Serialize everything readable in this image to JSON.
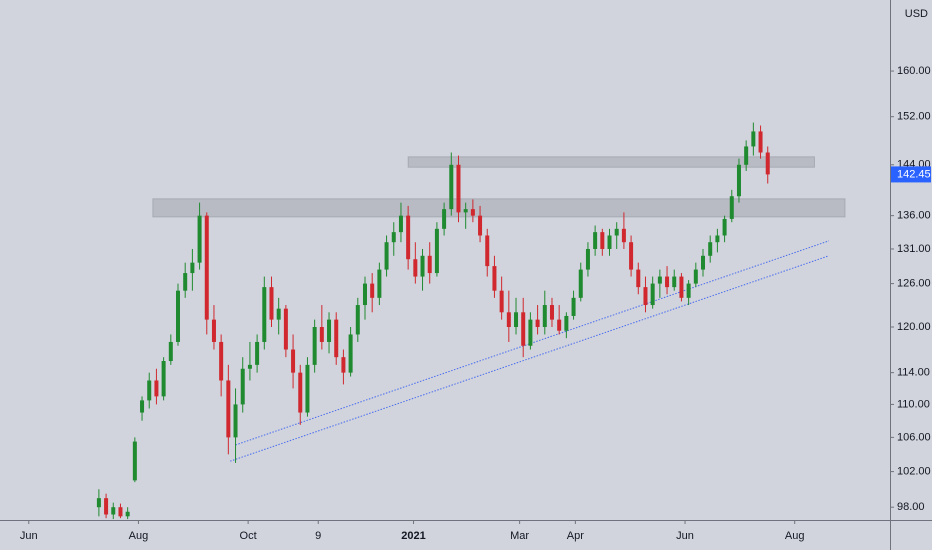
{
  "chart_data": {
    "type": "candlestick",
    "y_axis_label": "USD",
    "log_scale": true,
    "up_color": "#1f8a2f",
    "down_color": "#d0282e",
    "ylim": [
      96.6,
      173.3
    ],
    "yticks": [
      {
        "value": 98,
        "label": "98.00"
      },
      {
        "value": 102,
        "label": "102.00"
      },
      {
        "value": 106,
        "label": "106.00"
      },
      {
        "value": 110,
        "label": "110.00"
      },
      {
        "value": 114,
        "label": "114.00"
      },
      {
        "value": 120,
        "label": "120.00"
      },
      {
        "value": 126,
        "label": "126.00"
      },
      {
        "value": 131,
        "label": "131.00"
      },
      {
        "value": 136,
        "label": "136.00"
      },
      {
        "value": 144,
        "label": "144.00"
      },
      {
        "value": 152,
        "label": "152.00"
      },
      {
        "value": 160,
        "label": "160.00"
      }
    ],
    "xlim": [
      "2020-05-16",
      "2021-09-23"
    ],
    "xticks": [
      {
        "value": "2020-06-01",
        "label": "Jun"
      },
      {
        "value": "2020-08-01",
        "label": "Aug"
      },
      {
        "value": "2020-10-01",
        "label": "Oct"
      },
      {
        "value": "2020-11-09",
        "label": "9"
      },
      {
        "value": "2021-01-01",
        "label": "2021"
      },
      {
        "value": "2021-03-01",
        "label": "Mar"
      },
      {
        "value": "2021-04-01",
        "label": "Apr"
      },
      {
        "value": "2021-06-01",
        "label": "Jun"
      },
      {
        "value": "2021-08-01",
        "label": "Aug"
      }
    ],
    "last_price": 142.45,
    "x": [
      "2020-07-10",
      "2020-07-14",
      "2020-07-18",
      "2020-07-22",
      "2020-07-26",
      "2020-07-30",
      "2020-08-03",
      "2020-08-07",
      "2020-08-11",
      "2020-08-15",
      "2020-08-19",
      "2020-08-23",
      "2020-08-27",
      "2020-08-31",
      "2020-09-04",
      "2020-09-08",
      "2020-09-12",
      "2020-09-16",
      "2020-09-20",
      "2020-09-24",
      "2020-09-28",
      "2020-10-02",
      "2020-10-06",
      "2020-10-10",
      "2020-10-14",
      "2020-10-18",
      "2020-10-22",
      "2020-10-26",
      "2020-10-30",
      "2020-11-03",
      "2020-11-07",
      "2020-11-11",
      "2020-11-15",
      "2020-11-19",
      "2020-11-23",
      "2020-11-27",
      "2020-12-01",
      "2020-12-05",
      "2020-12-09",
      "2020-12-13",
      "2020-12-17",
      "2020-12-21",
      "2020-12-25",
      "2020-12-29",
      "2021-01-02",
      "2021-01-06",
      "2021-01-10",
      "2021-01-14",
      "2021-01-18",
      "2021-01-22",
      "2021-01-26",
      "2021-01-30",
      "2021-02-03",
      "2021-02-07",
      "2021-02-11",
      "2021-02-15",
      "2021-02-19",
      "2021-02-23",
      "2021-02-27",
      "2021-03-03",
      "2021-03-07",
      "2021-03-11",
      "2021-03-15",
      "2021-03-19",
      "2021-03-23",
      "2021-03-27",
      "2021-03-31",
      "2021-04-04",
      "2021-04-08",
      "2021-04-12",
      "2021-04-16",
      "2021-04-20",
      "2021-04-24",
      "2021-04-28",
      "2021-05-02",
      "2021-05-06",
      "2021-05-10",
      "2021-05-14",
      "2021-05-18",
      "2021-05-22",
      "2021-05-26",
      "2021-05-30",
      "2021-06-03",
      "2021-06-07",
      "2021-06-11",
      "2021-06-15",
      "2021-06-19",
      "2021-06-23",
      "2021-06-27",
      "2021-07-01",
      "2021-07-05",
      "2021-07-09",
      "2021-07-13",
      "2021-07-17"
    ],
    "open": [
      98,
      99,
      97.2,
      98,
      97,
      101,
      109,
      110.5,
      113,
      111,
      115.5,
      118,
      125,
      127.5,
      129,
      136,
      121,
      118,
      113,
      106,
      110,
      114.5,
      115,
      118,
      125.5,
      121,
      122.5,
      117,
      114,
      109,
      115,
      120,
      118,
      121,
      116,
      114,
      119,
      123,
      126,
      124,
      128,
      132,
      133.5,
      136,
      129.5,
      127,
      130,
      127.5,
      134,
      137,
      144,
      136.5,
      137,
      136,
      133,
      128.5,
      125,
      122,
      120,
      122,
      117.5,
      121,
      120,
      123,
      121,
      119.5,
      121.5,
      124,
      128,
      131,
      133.5,
      131,
      133,
      134,
      132,
      128,
      125.5,
      123,
      126,
      127,
      125.5,
      127,
      124,
      126,
      128,
      130,
      132,
      133,
      135.5,
      139,
      144,
      147,
      149.5,
      146
    ],
    "high": [
      100,
      99.5,
      98.5,
      98.4,
      98,
      106,
      111,
      114,
      114.5,
      116,
      119,
      126,
      129,
      131,
      138,
      136.5,
      123,
      119,
      115,
      112,
      116,
      118,
      119,
      127,
      127,
      124,
      123,
      119,
      115,
      116,
      121,
      123,
      122,
      122,
      117,
      120,
      124,
      127,
      127.5,
      129,
      133,
      135,
      138,
      137.5,
      132,
      131,
      132,
      135,
      138,
      146,
      145.5,
      138,
      138.5,
      137.5,
      134,
      130,
      127,
      125,
      124,
      124,
      122,
      123,
      125,
      124,
      123,
      122,
      125,
      129,
      132,
      134.5,
      134,
      134,
      135,
      136.5,
      133,
      129,
      127,
      127,
      128,
      128.5,
      128,
      127.5,
      126.5,
      129,
      131,
      133,
      134,
      136,
      140,
      145,
      148,
      151,
      150.5,
      147
    ],
    "low": [
      97,
      96.8,
      96.7,
      96.8,
      96.7,
      100.8,
      108,
      109.5,
      110,
      110.5,
      115,
      117.5,
      124,
      125,
      128,
      119,
      117,
      111,
      104,
      103,
      109,
      113,
      114,
      117,
      120,
      119,
      116,
      112,
      107.5,
      108.5,
      114,
      117,
      116.5,
      115,
      112.5,
      113.5,
      118,
      121,
      122,
      123,
      127,
      130,
      132,
      128,
      126,
      125,
      126,
      127,
      133,
      136,
      135,
      134,
      135,
      132,
      127,
      124,
      121,
      118,
      119,
      116,
      117,
      119,
      119,
      120,
      119,
      118.5,
      121,
      123.5,
      127,
      130,
      130,
      130,
      131,
      131,
      127,
      124.5,
      122,
      122.5,
      124,
      124.5,
      125,
      123.5,
      123,
      125.5,
      127,
      129,
      130.5,
      132,
      135,
      138,
      143,
      145.5,
      145,
      141
    ],
    "close": [
      99,
      97.2,
      98,
      97,
      97.5,
      105.5,
      110.5,
      113,
      111,
      115.5,
      118,
      125,
      127.5,
      129,
      136,
      121,
      118,
      113,
      106,
      110,
      114.5,
      115,
      118,
      125.5,
      121,
      122.5,
      117,
      114,
      109,
      115,
      120,
      118,
      121,
      116,
      114,
      119,
      123,
      126,
      124,
      128,
      132,
      133.5,
      136,
      129.5,
      127,
      130,
      127.5,
      134,
      137,
      144,
      136.5,
      137,
      136,
      133,
      128.5,
      125,
      122,
      120,
      122,
      117.5,
      121,
      120,
      123,
      121,
      119.5,
      121.5,
      124,
      128,
      131,
      133.5,
      131,
      133,
      134,
      132,
      128,
      125.5,
      123,
      126,
      127,
      125.5,
      127,
      124,
      126,
      128,
      130,
      132,
      133,
      135.5,
      139,
      144,
      147,
      149.5,
      146,
      142.45
    ],
    "zones": [
      {
        "x": [
          "2020-12-29",
          "2021-08-12"
        ],
        "y": [
          143.6,
          145.3
        ]
      },
      {
        "x": [
          "2020-08-09",
          "2021-08-29"
        ],
        "y": [
          135.8,
          138.6
        ]
      }
    ],
    "trendlines": [
      {
        "x": [
          "2020-09-24",
          "2021-08-20"
        ],
        "y": [
          105.1,
          132.2
        ],
        "color": "#4a6cf0"
      },
      {
        "x": [
          "2020-09-21",
          "2021-08-20"
        ],
        "y": [
          103.2,
          130.0
        ],
        "color": "#4a6cf0"
      }
    ]
  }
}
